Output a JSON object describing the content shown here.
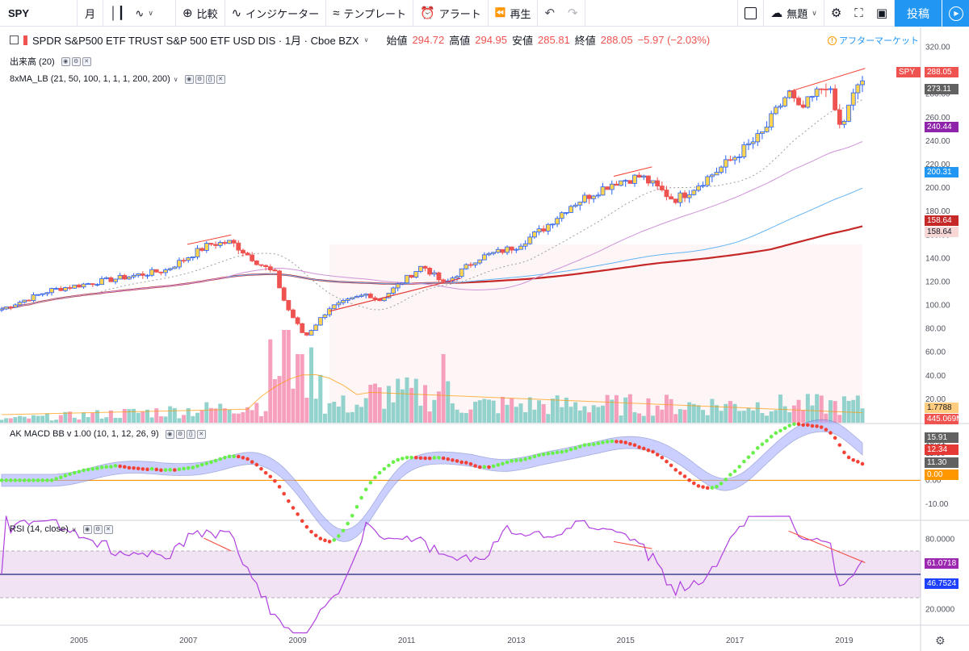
{
  "toolbar": {
    "symbol": "SPY",
    "interval": "月",
    "chart_type_icon": "candles-icon",
    "line_icon": "line-chart-icon",
    "compare_label": "比較",
    "indicators_label": "インジケーター",
    "templates_label": "テンプレート",
    "alert_label": "アラート",
    "replay_label": "再生",
    "layout_label": "無題",
    "publish_label": "投稿"
  },
  "legend": {
    "title": "SPDR S&P500 ETF TRUST S&P 500 ETF USD DIS · 1月 · Cboe BZX",
    "open_label": "始値",
    "open": "294.72",
    "high_label": "高値",
    "high": "294.95",
    "low_label": "安値",
    "low": "285.81",
    "close_label": "終値",
    "close": "288.05",
    "change": "−5.97 (−2.03%)",
    "after_market": "アフターマーケット",
    "volume": "出来高 (20)",
    "ma": "8xMA_LB (21, 50, 100, 1, 1, 1, 200, 200)",
    "macd": "AK MACD BB v 1.00 (10, 1, 12, 26, 9)",
    "rsi": "RSI (14, close)"
  },
  "colors": {
    "up": "#2962ff",
    "down": "#ef5350",
    "ma21": "#9e9e9e",
    "ma50": "#ce93d8",
    "ma100": "#64b5f6",
    "ma200": "#d32f2f",
    "vol_up": "#80cbc4",
    "vol_down": "#f48fb1",
    "macd_up": "#69f04a",
    "macd_down": "#f44336",
    "rsi": "#b040e0",
    "accent": "#2196f3"
  },
  "price_axis": {
    "ticks": [
      "320.00",
      "300.00",
      "280.00",
      "260.00",
      "240.00",
      "220.00",
      "200.00",
      "180.00",
      "160.00",
      "140.00",
      "120.00",
      "100.00",
      "80.00",
      "60.00",
      "40.00",
      "20.00"
    ],
    "tags": [
      {
        "text": "SPY",
        "color": "#ef5350"
      },
      {
        "text": "288.05",
        "color": "#ef5350"
      },
      {
        "text": "273.11",
        "color": "#616161"
      },
      {
        "text": "240.44",
        "color": "#8e24aa"
      },
      {
        "text": "200.31",
        "color": "#2196f3"
      },
      {
        "text": "158.64",
        "color": "#c62828"
      },
      {
        "text": "158.64",
        "color": "#f8d7d7"
      },
      {
        "text": "1.7788",
        "color": "#ffcc80"
      },
      {
        "text": "445.069M",
        "color": "#ef5350"
      }
    ]
  },
  "macd_axis": {
    "ticks": [
      "15.91",
      "12.34",
      "11.30",
      "0.00",
      "-10.00"
    ],
    "tags": [
      {
        "text": "15.91",
        "color": "#616161"
      },
      {
        "text": "12.34",
        "color": "#e53935"
      },
      {
        "text": "11.30",
        "color": "#616161"
      },
      {
        "text": "0.00",
        "color": "#ff9800"
      }
    ]
  },
  "rsi_axis": {
    "ticks": [
      "80.0000",
      "40.0000",
      "20.0000"
    ],
    "tags": [
      {
        "text": "61.0718",
        "color": "#9c27b0"
      },
      {
        "text": "46.7524",
        "color": "#1e40ff"
      }
    ]
  },
  "time_axis": [
    "2005",
    "2007",
    "2009",
    "2011",
    "2013",
    "2015",
    "2017",
    "2019"
  ],
  "chart_data": {
    "type": "candlestick",
    "price_range": [
      0,
      330
    ],
    "rsi_levels": [
      70,
      30
    ],
    "keypoints": [
      {
        "date": "2003.6",
        "price": 97
      },
      {
        "date": "2004.5",
        "price": 113
      },
      {
        "date": "2005.6",
        "price": 122
      },
      {
        "date": "2006.6",
        "price": 130
      },
      {
        "date": "2007.4",
        "price": 152
      },
      {
        "date": "2007.8",
        "price": 154
      },
      {
        "date": "2008.3",
        "price": 136
      },
      {
        "date": "2008.6",
        "price": 127
      },
      {
        "date": "2008.8",
        "price": 100
      },
      {
        "date": "2009.15",
        "price": 73
      },
      {
        "date": "2009.6",
        "price": 98
      },
      {
        "date": "2010.3",
        "price": 110
      },
      {
        "date": "2010.5",
        "price": 104
      },
      {
        "date": "2011.3",
        "price": 134
      },
      {
        "date": "2011.7",
        "price": 118
      },
      {
        "date": "2012.3",
        "price": 140
      },
      {
        "date": "2013.0",
        "price": 150
      },
      {
        "date": "2013.5",
        "price": 165
      },
      {
        "date": "2014.0",
        "price": 185
      },
      {
        "date": "2014.8",
        "price": 205
      },
      {
        "date": "2015.3",
        "price": 210
      },
      {
        "date": "2015.9",
        "price": 190
      },
      {
        "date": "2016.1",
        "price": 195
      },
      {
        "date": "2016.7",
        "price": 215
      },
      {
        "date": "2017.5",
        "price": 245
      },
      {
        "date": "2018.0",
        "price": 282
      },
      {
        "date": "2018.2",
        "price": 265
      },
      {
        "date": "2018.7",
        "price": 290
      },
      {
        "date": "2018.95",
        "price": 250
      },
      {
        "date": "2019.3",
        "price": 292
      }
    ]
  }
}
